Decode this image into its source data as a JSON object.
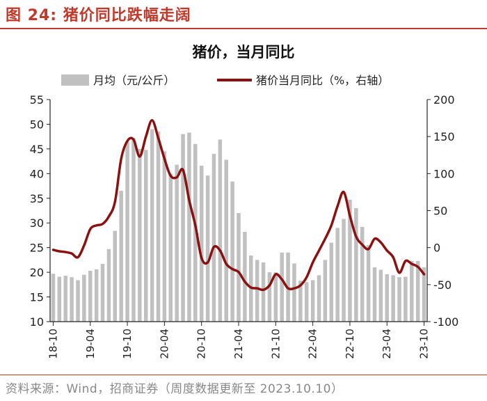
{
  "figure": {
    "label": "图 24:",
    "title": "猪价同比跌幅走阔",
    "source": "资料来源：Wind，招商证券（周度数据更新至 2023.10.10）"
  },
  "colors": {
    "bars": "#c0c0c0",
    "line": "#8b1010",
    "accent": "#c0392b"
  },
  "chart_data": {
    "type": "bar+line",
    "title": "猪价，当月同比",
    "legend": [
      {
        "name": "月均（元/公斤）",
        "kind": "bar"
      },
      {
        "name": "猪价当月同比（%，右轴）",
        "kind": "line"
      }
    ],
    "legend_position": "top",
    "categories": [
      "18-10",
      "18-11",
      "18-12",
      "19-01",
      "19-02",
      "19-03",
      "19-04",
      "19-05",
      "19-06",
      "19-07",
      "19-08",
      "19-09",
      "19-10",
      "19-11",
      "19-12",
      "20-01",
      "20-02",
      "20-03",
      "20-04",
      "20-05",
      "20-06",
      "20-07",
      "20-08",
      "20-09",
      "20-10",
      "20-11",
      "20-12",
      "21-01",
      "21-02",
      "21-03",
      "21-04",
      "21-05",
      "21-06",
      "21-07",
      "21-08",
      "21-09",
      "21-10",
      "21-11",
      "21-12",
      "22-01",
      "22-02",
      "22-03",
      "22-04",
      "22-05",
      "22-06",
      "22-07",
      "22-08",
      "22-09",
      "22-10",
      "22-11",
      "22-12",
      "23-01",
      "23-02",
      "23-03",
      "23-04",
      "23-05",
      "23-06",
      "23-07",
      "23-08",
      "23-09",
      "23-10"
    ],
    "x_tick_labels": [
      "18-10",
      "19-04",
      "19-10",
      "20-04",
      "20-10",
      "21-04",
      "21-10",
      "22-04",
      "22-10",
      "23-04",
      "23-10"
    ],
    "series": [
      {
        "name": "月均（元/公斤）",
        "axis": "left",
        "values": [
          19.7,
          19.1,
          19.3,
          19.0,
          18.4,
          19.5,
          20.3,
          20.6,
          21.7,
          24.7,
          28.4,
          36.5,
          46.4,
          47.2,
          45.0,
          44.8,
          49.0,
          48.5,
          44.5,
          40.0,
          41.8,
          48.0,
          48.3,
          46.0,
          41.6,
          39.6,
          44.0,
          46.9,
          42.8,
          38.4,
          32.0,
          28.2,
          23.4,
          22.5,
          22.0,
          20.0,
          20.0,
          24.0,
          24.0,
          21.8,
          18.3,
          18.0,
          18.4,
          19.4,
          22.5,
          26.0,
          29.0,
          30.8,
          34.7,
          33.0,
          29.2,
          25.5,
          21.0,
          20.5,
          19.6,
          19.4,
          19.0,
          19.1,
          22.3,
          22.3,
          21.0
        ]
      },
      {
        "name": "猪价当月同比（%，右轴）",
        "axis": "right",
        "values": [
          -3,
          -5,
          -6,
          -8,
          -13,
          3,
          25,
          30,
          32,
          42,
          62,
          120,
          144,
          146,
          123,
          150,
          172,
          148,
          120,
          97,
          95,
          105,
          64,
          30,
          -14,
          -20,
          1,
          -4,
          -22,
          -29,
          -33,
          -46,
          -54,
          -55,
          -57,
          -51,
          -36,
          -43,
          -55,
          -55,
          -51,
          -40,
          -20,
          -4,
          12,
          30,
          56,
          75,
          43,
          15,
          4,
          -2,
          12,
          7,
          -4,
          -13,
          -34,
          -18,
          -22,
          -26,
          -36
        ]
      }
    ],
    "y_left": {
      "min": 10,
      "max": 55,
      "ticks": [
        10,
        15,
        20,
        25,
        30,
        35,
        40,
        45,
        50,
        55
      ]
    },
    "y_right": {
      "min": -100,
      "max": 200,
      "ticks": [
        -100,
        -50,
        0,
        50,
        100,
        150,
        200
      ]
    }
  }
}
